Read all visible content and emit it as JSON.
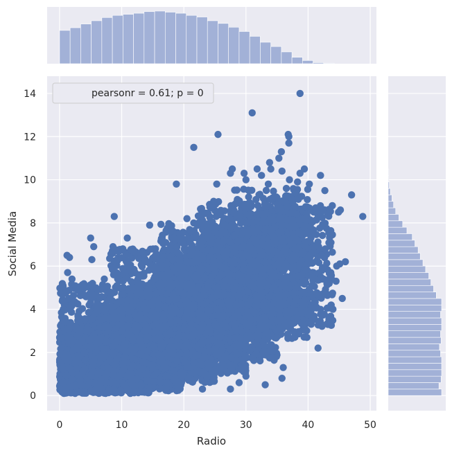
{
  "chart_data": {
    "type": "scatter",
    "title": "",
    "xlabel": "Radio",
    "ylabel": "Social Media",
    "xlim": [
      -2,
      51
    ],
    "ylim": [
      -0.7,
      14.8
    ],
    "xticks": [
      0,
      10,
      20,
      30,
      40,
      50
    ],
    "yticks": [
      0,
      2,
      4,
      6,
      8,
      10,
      12,
      14
    ],
    "grid": true,
    "legend": {
      "text": "pearsonr = 0.61; p = 0",
      "placement": "top-left"
    },
    "colors": {
      "points": "#4c72b0",
      "hist": "#a2b1d7",
      "panel": "#eaeaf2"
    },
    "points": [
      [
        0.6,
        4.0
      ],
      [
        1.2,
        6.5
      ],
      [
        1.6,
        6.4
      ],
      [
        1.5,
        4.5
      ],
      [
        1.3,
        5.7
      ],
      [
        2.0,
        5.4
      ],
      [
        1.1,
        4.8
      ],
      [
        5.2,
        6.3
      ],
      [
        5.0,
        7.3
      ],
      [
        5.5,
        6.9
      ],
      [
        8.6,
        6.9
      ],
      [
        10.9,
        7.3
      ],
      [
        8.7,
        5.6
      ],
      [
        7.2,
        5.4
      ],
      [
        8.8,
        8.3
      ],
      [
        14.5,
        7.9
      ],
      [
        18.8,
        9.8
      ],
      [
        20.5,
        8.2
      ],
      [
        21.6,
        8.0
      ],
      [
        24.8,
        9.0
      ],
      [
        25.3,
        9.8
      ],
      [
        25.8,
        8.5
      ],
      [
        27.6,
        8.8
      ],
      [
        27.5,
        10.3
      ],
      [
        30.0,
        10.0
      ],
      [
        30.5,
        9.5
      ],
      [
        32.5,
        10.2
      ],
      [
        33.6,
        9.8
      ],
      [
        34.0,
        10.5
      ],
      [
        34.9,
        9.2
      ],
      [
        35.8,
        10.4
      ],
      [
        36.5,
        9.6
      ],
      [
        37.0,
        10.0
      ],
      [
        38.3,
        9.9
      ],
      [
        38.7,
        10.3
      ],
      [
        39.4,
        10.5
      ],
      [
        40.2,
        9.8
      ],
      [
        42.0,
        10.2
      ],
      [
        43.2,
        8.4
      ],
      [
        42.7,
        9.5
      ],
      [
        43.9,
        8.8
      ],
      [
        44.9,
        8.5
      ],
      [
        45.2,
        8.6
      ],
      [
        47.0,
        9.3
      ],
      [
        48.8,
        8.3
      ],
      [
        45.5,
        4.5
      ],
      [
        44.5,
        5.3
      ],
      [
        44.0,
        4.0
      ],
      [
        38.7,
        14.0
      ],
      [
        31.0,
        13.1
      ],
      [
        36.8,
        12.1
      ],
      [
        36.9,
        12.0
      ],
      [
        25.5,
        12.1
      ],
      [
        21.6,
        11.5
      ],
      [
        35.7,
        11.3
      ],
      [
        35.3,
        11.0
      ],
      [
        36.9,
        11.7
      ],
      [
        31.8,
        10.5
      ],
      [
        33.8,
        10.8
      ],
      [
        27.8,
        10.5
      ],
      [
        29.7,
        10.3
      ],
      [
        41.7,
        6.9
      ],
      [
        42.5,
        5.4
      ],
      [
        43.4,
        5.2
      ],
      [
        44.6,
        6.0
      ],
      [
        45.1,
        6.1
      ],
      [
        46.0,
        6.2
      ],
      [
        40.5,
        3.3
      ],
      [
        41.6,
        2.2
      ],
      [
        36.0,
        1.3
      ],
      [
        35.8,
        0.8
      ],
      [
        33.1,
        0.5
      ],
      [
        30.0,
        0.9
      ],
      [
        28.9,
        0.6
      ],
      [
        27.5,
        0.3
      ],
      [
        19.0,
        0.4
      ],
      [
        23.0,
        0.3
      ],
      [
        3.5,
        0.2
      ],
      [
        8.0,
        0.2
      ],
      [
        12.0,
        0.2
      ]
    ],
    "point_clusters": [
      {
        "x": [
          0,
          5
        ],
        "y": [
          0.1,
          3.4
        ],
        "n": 520
      },
      {
        "x": [
          0,
          10
        ],
        "y": [
          0.1,
          3.0
        ],
        "n": 700
      },
      {
        "x": [
          5,
          15
        ],
        "y": [
          0.1,
          4.2
        ],
        "n": 900
      },
      {
        "x": [
          10,
          20
        ],
        "y": [
          0.2,
          5.0
        ],
        "n": 1000
      },
      {
        "x": [
          15,
          25
        ],
        "y": [
          0.6,
          6.0
        ],
        "n": 1000
      },
      {
        "x": [
          20,
          30
        ],
        "y": [
          1.0,
          6.8
        ],
        "n": 950
      },
      {
        "x": [
          25,
          35
        ],
        "y": [
          1.6,
          7.7
        ],
        "n": 850
      },
      {
        "x": [
          30,
          40
        ],
        "y": [
          2.6,
          8.5
        ],
        "n": 650
      },
      {
        "x": [
          35,
          44
        ],
        "y": [
          3.2,
          8.8
        ],
        "n": 320
      },
      {
        "x": [
          0,
          8
        ],
        "y": [
          2.5,
          5.2
        ],
        "n": 160
      },
      {
        "x": [
          8,
          18
        ],
        "y": [
          3.5,
          6.8
        ],
        "n": 260
      },
      {
        "x": [
          16,
          28
        ],
        "y": [
          5.0,
          8.0
        ],
        "n": 260
      },
      {
        "x": [
          22,
          38
        ],
        "y": [
          6.5,
          9.0
        ],
        "n": 220
      },
      {
        "x": [
          28,
          40
        ],
        "y": [
          8.0,
          9.6
        ],
        "n": 90
      }
    ],
    "x_hist": {
      "bin_start": 0,
      "bin_width": 1.7,
      "counts": [
        62,
        67,
        74,
        80,
        86,
        90,
        92,
        94,
        97,
        98,
        96,
        94,
        90,
        87,
        80,
        75,
        68,
        60,
        51,
        40,
        32,
        22,
        12,
        6,
        2,
        1
      ]
    },
    "y_hist": {
      "bin_start": 0,
      "bin_width": 0.3,
      "counts": [
        100,
        95,
        99,
        100,
        100,
        100,
        98,
        96,
        99,
        98,
        100,
        100,
        98,
        100,
        100,
        90,
        85,
        80,
        76,
        70,
        65,
        60,
        56,
        50,
        45,
        35,
        27,
        20,
        14,
        10,
        7,
        4,
        2,
        1,
        1
      ]
    }
  }
}
